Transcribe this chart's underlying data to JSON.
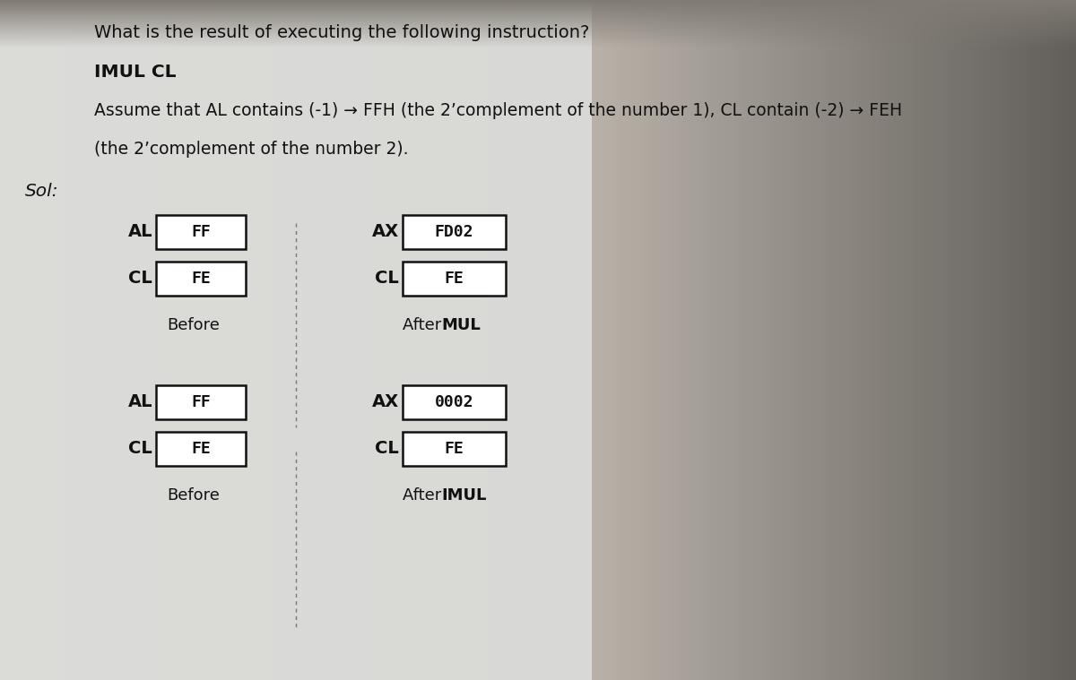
{
  "background_color": "#b8b8a8",
  "paper_color": "#dcdcd0",
  "title_line1": "What is the result of executing the following instruction?",
  "title_line2": "IMUL CL",
  "title_line3": "Assume that AL contains (-1) → FFH (the 2’complement of the number 1), CL contain (-2) → FEH",
  "title_line4": "(the 2’complement of the number 2).",
  "sol_label": "Sol:",
  "section1": {
    "before_label1": "AL",
    "before_val1": "FF",
    "before_label2": "CL",
    "before_val2": "FE",
    "before_caption": "Before",
    "after_label1": "AX",
    "after_val1": "FD02",
    "after_label2": "CL",
    "after_val2": "FE",
    "after_caption_normal": "After ",
    "after_caption_bold": "MUL"
  },
  "section2": {
    "before_label1": "AL",
    "before_val1": "FF",
    "before_label2": "CL",
    "before_val2": "FE",
    "before_caption": "Before",
    "after_label1": "AX",
    "after_val1": "0002",
    "after_label2": "CL",
    "after_val2": "FE",
    "after_caption_normal": "After ",
    "after_caption_bold": "IMUL"
  },
  "box_facecolor": "#ffffff",
  "box_edgecolor": "#111111",
  "text_color": "#111111",
  "divider_color": "#777777",
  "figsize": [
    12.0,
    7.59
  ],
  "dpi": 100
}
